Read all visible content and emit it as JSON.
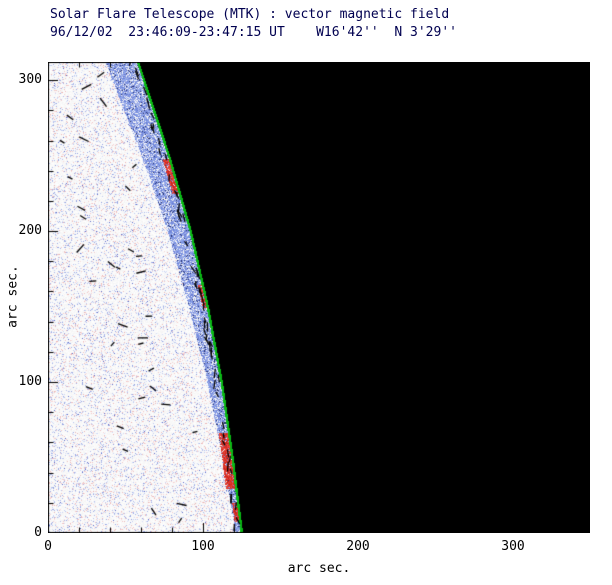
{
  "chart_data": {
    "type": "heatmap",
    "title": "Solar Flare Telescope (MTK) : vector magnetic field",
    "subtitle": "96/12/02  23:46:09-23:47:15 UT    W16'42''  N 3'29''",
    "xlabel": "arc sec.",
    "ylabel": "arc sec.",
    "xlim": [
      0,
      350
    ],
    "ylim": [
      0,
      312
    ],
    "xticks": [
      "0",
      "100",
      "200",
      "300"
    ],
    "yticks": [
      "0",
      "100",
      "200",
      "300"
    ],
    "major_tick_step": 100,
    "minor_tick_step": 20,
    "description": "Vector magnetogram at the west solar limb: speckled quiet-sun field on the disk (left), dark sky beyond the limb (right), green limb contour, blue band of line-of-sight field hugging the limb, red opposite-polarity patches on the limb, and short black transverse-field vector ticks.",
    "limb_points": [
      [
        0,
        126
      ],
      [
        50,
        120
      ],
      [
        100,
        113
      ],
      [
        150,
        104
      ],
      [
        200,
        93
      ],
      [
        250,
        79
      ],
      [
        312,
        59
      ]
    ],
    "green_width": 1.6,
    "band_base": 3,
    "band_slope": 0.055,
    "red_patches": [
      {
        "y1": 225,
        "y2": 248,
        "w": 4
      },
      {
        "y1": 150,
        "y2": 164,
        "w": 2.5
      },
      {
        "y1": 30,
        "y2": 66,
        "w": 6
      },
      {
        "y1": 8,
        "y2": 20,
        "w": 3
      }
    ],
    "noise": {
      "blue_prob": 0.1,
      "pink_prob": 0.07,
      "seed": 1234
    },
    "vectors": {
      "seed": 99,
      "scattered": 34,
      "along_limb": 60
    },
    "colors": {
      "sky": "#000000",
      "limb_line": "#0ab914",
      "noise_blue": "#8c9bdc",
      "noise_pink": "#e8b8b8",
      "band_blue": "#6e82d8",
      "red_patch": "#d93a28",
      "vector": "#000000",
      "axis": "#000000",
      "title_text": "#000050"
    },
    "legend": "none",
    "grid": "off"
  }
}
